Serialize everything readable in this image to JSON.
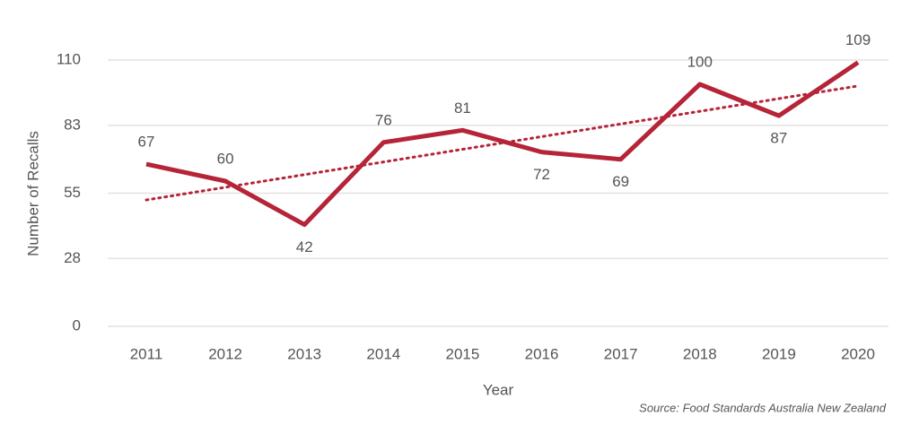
{
  "chart_data": {
    "type": "line",
    "x_label": "Year",
    "y_label": "Number of Recalls",
    "source": "Source: Food Standards Australia New Zealand",
    "categories": [
      "2011",
      "2012",
      "2013",
      "2014",
      "2015",
      "2016",
      "2017",
      "2018",
      "2019",
      "2020"
    ],
    "values": [
      67,
      60,
      42,
      76,
      81,
      72,
      69,
      100,
      87,
      109
    ],
    "color": "#b52437",
    "trendline": {
      "values": [
        52.2,
        99.3
      ],
      "color": "#b52437",
      "style": "dotted"
    },
    "ylim": [
      0,
      110
    ],
    "yticks": [
      0,
      28,
      55,
      83,
      110
    ],
    "grid": true
  }
}
